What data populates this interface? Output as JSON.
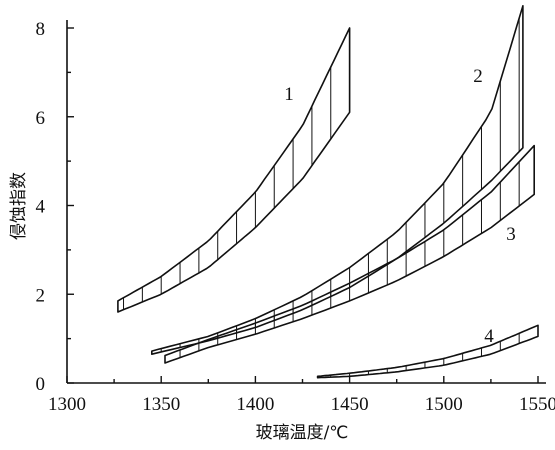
{
  "chart_data": {
    "type": "area",
    "xlabel": "玻璃温度/℃",
    "ylabel": "侵蚀指数",
    "xlim": [
      1300,
      1550
    ],
    "ylim": [
      0,
      8
    ],
    "x_ticks": [
      "1300",
      "1350",
      "1400",
      "1450",
      "1500",
      "1550"
    ],
    "y_ticks": [
      "0",
      "2",
      "4",
      "6",
      "8"
    ],
    "series": [
      {
        "name": "1",
        "x": [
          1327,
          1350,
          1375,
          1400,
          1425,
          1450
        ],
        "lower": [
          1.6,
          2.0,
          2.6,
          3.5,
          4.6,
          6.1
        ],
        "upper": [
          1.85,
          2.4,
          3.2,
          4.3,
          5.8,
          8.0
        ]
      },
      {
        "name": "2",
        "x": [
          1345,
          1375,
          1400,
          1425,
          1450,
          1475,
          1500,
          1525,
          1542
        ],
        "lower": [
          0.65,
          0.95,
          1.25,
          1.65,
          2.15,
          2.8,
          3.6,
          4.55,
          5.3
        ],
        "upper": [
          0.72,
          1.05,
          1.45,
          1.95,
          2.6,
          3.4,
          4.5,
          6.1,
          8.5
        ]
      },
      {
        "name": "3",
        "x": [
          1352,
          1375,
          1400,
          1425,
          1450,
          1475,
          1500,
          1525,
          1548
        ],
        "lower": [
          0.45,
          0.8,
          1.1,
          1.45,
          1.85,
          2.3,
          2.85,
          3.5,
          4.25
        ],
        "upper": [
          0.62,
          0.98,
          1.35,
          1.75,
          2.25,
          2.8,
          3.45,
          4.3,
          5.35
        ]
      },
      {
        "name": "4",
        "x": [
          1433,
          1450,
          1475,
          1500,
          1525,
          1550
        ],
        "lower": [
          0.12,
          0.15,
          0.25,
          0.4,
          0.65,
          1.05
        ],
        "upper": [
          0.15,
          0.22,
          0.35,
          0.55,
          0.85,
          1.3
        ]
      }
    ],
    "grid": false,
    "legend": "none"
  }
}
